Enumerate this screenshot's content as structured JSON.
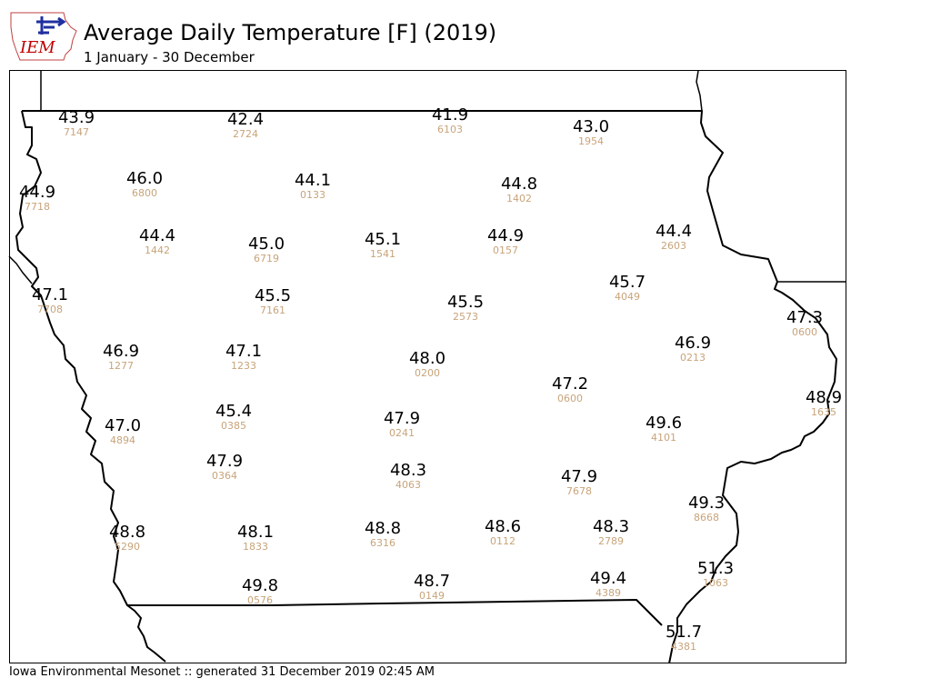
{
  "header": {
    "title": "Average Daily Temperature [F] (2019)",
    "subtitle": "1 January - 30 December"
  },
  "logo": {
    "text": "IEM",
    "color": "#c00000"
  },
  "footer": {
    "text": "Iowa Environmental Mesonet :: generated 31 December 2019 02:45 AM"
  },
  "colors": {
    "value": "#000000",
    "station_id": "#c8a47a",
    "border": "#000000"
  },
  "stations": [
    {
      "value": "43.9",
      "id": "7147"
    },
    {
      "value": "42.4",
      "id": "2724"
    },
    {
      "value": "41.9",
      "id": "6103"
    },
    {
      "value": "43.0",
      "id": "1954"
    },
    {
      "value": "46.0",
      "id": "6800"
    },
    {
      "value": "44.1",
      "id": "0133"
    },
    {
      "value": "44.8",
      "id": "1402"
    },
    {
      "value": "44.9",
      "id": "7718"
    },
    {
      "value": "44.4",
      "id": "1442"
    },
    {
      "value": "45.0",
      "id": "6719"
    },
    {
      "value": "45.1",
      "id": "1541"
    },
    {
      "value": "44.9",
      "id": "0157"
    },
    {
      "value": "44.4",
      "id": "2603"
    },
    {
      "value": "47.1",
      "id": "7708"
    },
    {
      "value": "45.5",
      "id": "7161"
    },
    {
      "value": "45.5",
      "id": "2573"
    },
    {
      "value": "45.7",
      "id": "4049"
    },
    {
      "value": "47.3",
      "id": "0600"
    },
    {
      "value": "46.9",
      "id": "1277"
    },
    {
      "value": "47.1",
      "id": "1233"
    },
    {
      "value": "48.0",
      "id": "0200"
    },
    {
      "value": "46.9",
      "id": "0213"
    },
    {
      "value": "47.2",
      "id": "0600"
    },
    {
      "value": "48.9",
      "id": "1635"
    },
    {
      "value": "47.0",
      "id": "4894"
    },
    {
      "value": "45.4",
      "id": "0385"
    },
    {
      "value": "47.9",
      "id": "0241"
    },
    {
      "value": "49.6",
      "id": "4101"
    },
    {
      "value": "47.9",
      "id": "0364"
    },
    {
      "value": "48.3",
      "id": "4063"
    },
    {
      "value": "47.9",
      "id": "7678"
    },
    {
      "value": "49.3",
      "id": "8668"
    },
    {
      "value": "48.8",
      "id": "5290"
    },
    {
      "value": "48.1",
      "id": "1833"
    },
    {
      "value": "48.8",
      "id": "6316"
    },
    {
      "value": "48.6",
      "id": "0112"
    },
    {
      "value": "48.3",
      "id": "2789"
    },
    {
      "value": "51.3",
      "id": "1063"
    },
    {
      "value": "49.8",
      "id": "0576"
    },
    {
      "value": "48.7",
      "id": "0149"
    },
    {
      "value": "49.4",
      "id": "4389"
    },
    {
      "value": "51.7",
      "id": "4381"
    }
  ]
}
